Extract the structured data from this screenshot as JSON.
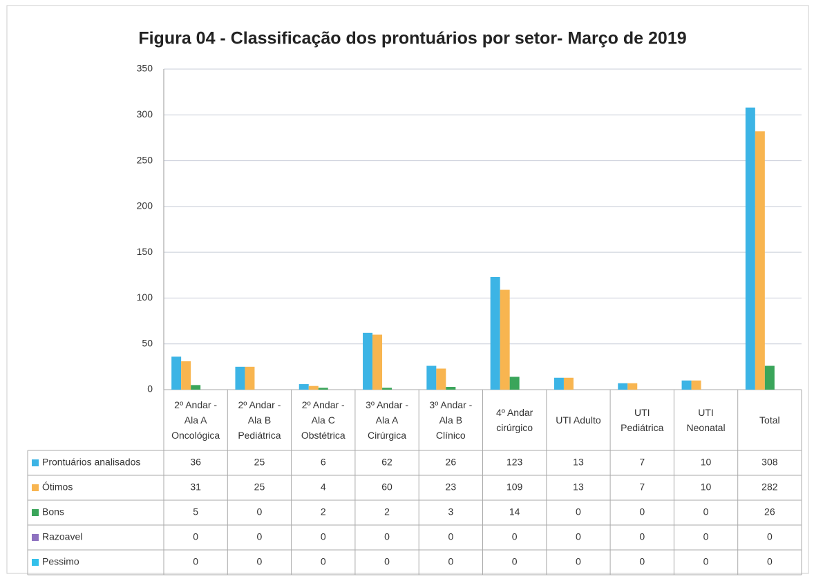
{
  "chart_data": {
    "type": "bar",
    "title": "Figura 04 - Classificação  dos prontuários  por setor- Março de 2019",
    "categories": [
      "2º Andar -\nAla A\nOncológica",
      "2º Andar -\nAla B\nPediátrica",
      "2º Andar -\nAla C\nObstétrica",
      "3º Andar -\nAla A\nCirúrgica",
      "3º Andar -\nAla B\nClínico",
      "4º Andar\ncirúrgico",
      "UTI Adulto",
      "UTI\nPediátrica",
      "UTI\nNeonatal",
      "Total"
    ],
    "series": [
      {
        "name": "Prontuários analisados",
        "color": "#3cb4e5",
        "values": [
          36,
          25,
          6,
          62,
          26,
          123,
          13,
          7,
          10,
          308
        ]
      },
      {
        "name": "Ótimos",
        "color": "#f8b550",
        "values": [
          31,
          25,
          4,
          60,
          23,
          109,
          13,
          7,
          10,
          282
        ]
      },
      {
        "name": "Bons",
        "color": "#3aa55a",
        "values": [
          5,
          0,
          2,
          2,
          3,
          14,
          0,
          0,
          0,
          26
        ]
      },
      {
        "name": "Razoavel",
        "color": "#8e72c0",
        "values": [
          0,
          0,
          0,
          0,
          0,
          0,
          0,
          0,
          0,
          0
        ]
      },
      {
        "name": "Pessimo",
        "color": "#33c0ea",
        "values": [
          0,
          0,
          0,
          0,
          0,
          0,
          0,
          0,
          0,
          0
        ]
      }
    ],
    "ylim": [
      0,
      350
    ],
    "yticks": [
      0,
      50,
      100,
      150,
      200,
      250,
      300,
      350
    ],
    "grid": true
  }
}
